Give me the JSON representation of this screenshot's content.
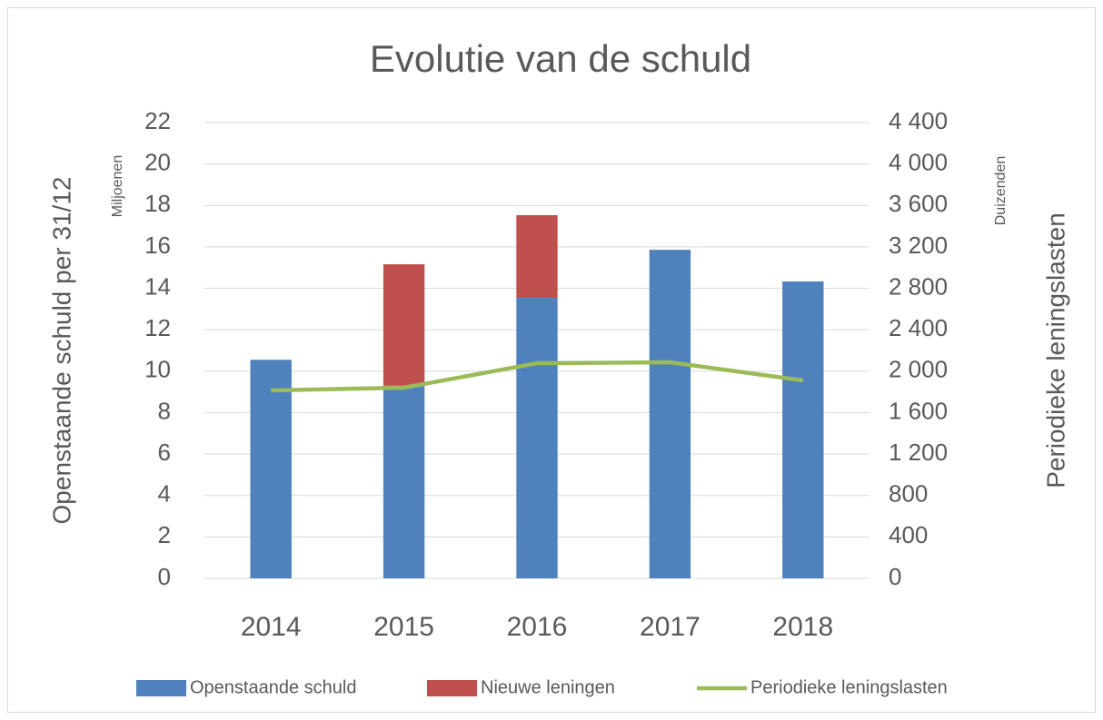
{
  "chart_data": {
    "type": "bar",
    "title": "Evolutie van de schuld",
    "y_label": "Openstaande schuld per 31/12",
    "y_unit": "Miljoenen",
    "y2_label": "Periodieke leningslasten",
    "y2_unit": "Duizenden",
    "categories": [
      "2014",
      "2015",
      "2016",
      "2017",
      "2018"
    ],
    "stacked": true,
    "series": [
      {
        "name": "Openstaande schuld",
        "type": "bar",
        "color": "#4f81bd",
        "values": [
          10.55,
          9.3,
          13.54,
          15.86,
          14.33
        ]
      },
      {
        "name": "Nieuwe leningen",
        "type": "bar",
        "color": "#c0504d",
        "values": [
          0,
          5.86,
          3.99,
          0,
          0
        ]
      },
      {
        "name": "Periodieke leningslasten",
        "type": "line",
        "axis": "y2",
        "color": "#9bbb59",
        "values": [
          1814,
          1841,
          2077,
          2086,
          1911
        ]
      }
    ],
    "ylim": [
      0,
      22
    ],
    "yticks": [
      0,
      2,
      4,
      6,
      8,
      10,
      12,
      14,
      16,
      18,
      20,
      22
    ],
    "y2lim": [
      0,
      4400
    ],
    "y2ticks": [
      0,
      400,
      800,
      {
        "value": 1200,
        "label": "1 200"
      },
      {
        "value": 1600,
        "label": "1 600"
      },
      {
        "value": 2000,
        "label": "2 000"
      },
      {
        "value": 2400,
        "label": "2 400"
      },
      {
        "value": 2800,
        "label": "2 800"
      },
      {
        "value": 3200,
        "label": "3 200"
      },
      {
        "value": 3600,
        "label": "3 600"
      },
      {
        "value": 4000,
        "label": "4 000"
      },
      {
        "value": 4400,
        "label": "4 400"
      }
    ],
    "grid": true,
    "legend": "bottom"
  }
}
